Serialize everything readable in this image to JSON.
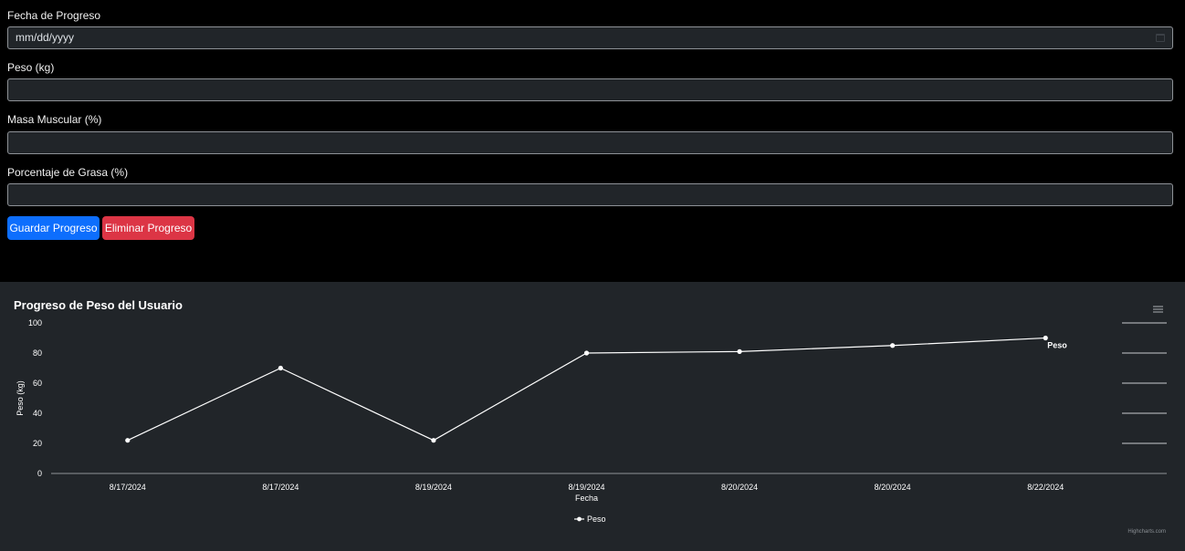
{
  "form": {
    "date_label": "Fecha de Progreso",
    "date_placeholder": "mm/dd/yyyy",
    "weight_label": "Peso (kg)",
    "muscle_label": "Masa Muscular (%)",
    "fat_label": "Porcentaje de Grasa (%)",
    "save_button": "Guardar Progreso",
    "delete_button": "Eliminar Progreso"
  },
  "colors": {
    "primary": "#0d6efd",
    "danger": "#dc3545",
    "panel": "#212529",
    "line": "#ffffff"
  },
  "chart_data": {
    "type": "line",
    "title": "Progreso de Peso del Usuario",
    "xlabel": "Fecha",
    "ylabel": "Peso (kg)",
    "categories": [
      "8/17/2024",
      "8/17/2024",
      "8/19/2024",
      "8/19/2024",
      "8/20/2024",
      "8/20/2024",
      "8/22/2024"
    ],
    "series": [
      {
        "name": "Peso",
        "values": [
          22,
          70,
          22,
          80,
          81,
          85,
          90
        ]
      }
    ],
    "ylim": [
      0,
      100
    ],
    "yticks": [
      0,
      20,
      40,
      60,
      80,
      100
    ],
    "grid": true,
    "legend": "bottom-center",
    "end_label": "Peso",
    "credit": "Highcharts.com"
  }
}
